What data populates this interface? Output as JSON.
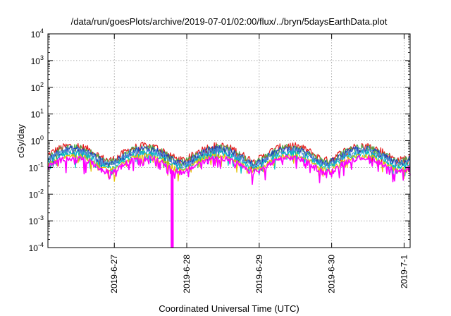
{
  "chart_data": {
    "type": "line",
    "title": "/data/run/goesPlots/archive/2019-07-01/02:00/flux/../bryn/5daysEarthData.plot",
    "xlabel": "Coordinated Universal Time (UTC)",
    "ylabel": "cGy/day",
    "y_scale": "log",
    "ylim": [
      "1e-4",
      "1e4"
    ],
    "y_tick_labels": [
      {
        "base": "10",
        "exp": "-4"
      },
      {
        "base": "10",
        "exp": "-3"
      },
      {
        "base": "10",
        "exp": "-2"
      },
      {
        "base": "10",
        "exp": "-1"
      },
      {
        "base": "10",
        "exp": "0"
      },
      {
        "base": "10",
        "exp": "1"
      },
      {
        "base": "10",
        "exp": "2"
      },
      {
        "base": "10",
        "exp": "3"
      },
      {
        "base": "10",
        "exp": "4"
      }
    ],
    "xlim": [
      "2019-06-26 02:00",
      "2019-07-01 02:00"
    ],
    "x_tick_labels": [
      "2019-6-27",
      "2019-6-28",
      "2019-6-29",
      "2019-6-30",
      "2019-7-1"
    ],
    "x_tick_dates": [
      "2019-06-27",
      "2019-06-28",
      "2019-06-29",
      "2019-06-30",
      "2019-07-01"
    ],
    "grid": true,
    "legend": "none",
    "series": [
      {
        "color": "#e41a1c",
        "level": 0.42,
        "amplitude": 0.18,
        "dips": 0.2
      },
      {
        "color": "#4daf4a",
        "level": 0.36,
        "amplitude": 0.16,
        "dips": 0.2
      },
      {
        "color": "#1f3fbf",
        "level": 0.32,
        "amplitude": 0.16,
        "dips": 0.22
      },
      {
        "color": "#4a90d9",
        "level": 0.28,
        "amplitude": 0.14,
        "dips": 0.22
      },
      {
        "color": "#00c0c0",
        "level": 0.22,
        "amplitude": 0.12,
        "dips": 0.26
      },
      {
        "color": "#e6c200",
        "level": 0.18,
        "amplitude": 0.1,
        "dips": 0.26
      },
      {
        "color": "#ff00ff",
        "level": 0.15,
        "amplitude": 0.12,
        "dips": 0.45
      }
    ],
    "events": [
      {
        "series_color": "#ff00ff",
        "time": "2019-06-27 19:00",
        "value": "1e-4"
      }
    ]
  }
}
